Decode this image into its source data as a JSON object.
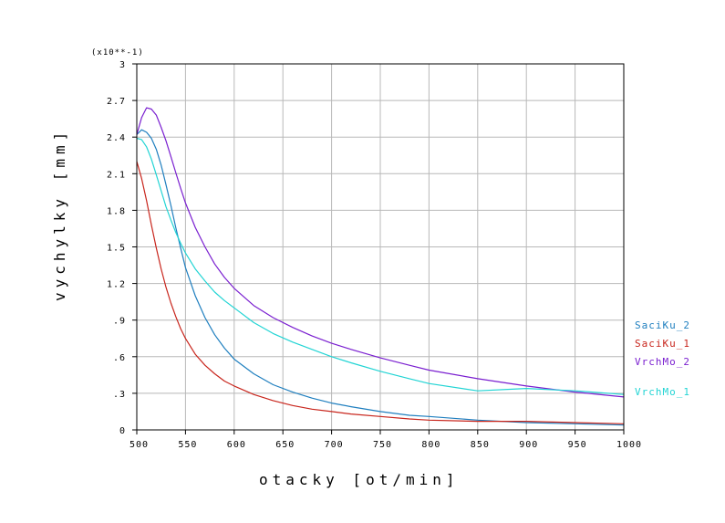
{
  "chart_data": {
    "type": "line",
    "title": "",
    "xlabel": "otacky [ot/min]",
    "ylabel": "vychylky [mm]",
    "y_multiplier_label": "(x10**-1)",
    "xlim": [
      500,
      1000
    ],
    "ylim": [
      0,
      3
    ],
    "x_ticks": [
      "500",
      "550",
      "600",
      "650",
      "700",
      "750",
      "800",
      "850",
      "900",
      "950",
      "1000"
    ],
    "x_tick_values": [
      500,
      550,
      600,
      650,
      700,
      750,
      800,
      850,
      900,
      950,
      1000
    ],
    "y_ticks": [
      "0",
      ".3",
      ".6",
      ".9",
      "1.2",
      "1.5",
      "1.8",
      "2.1",
      "2.4",
      "2.7",
      "3"
    ],
    "y_tick_values": [
      0,
      0.3,
      0.6,
      0.9,
      1.2,
      1.5,
      1.8,
      2.1,
      2.4,
      2.7,
      3.0
    ],
    "grid": true,
    "legend_placement": "right",
    "series": [
      {
        "name": "SaciKu_2",
        "color": "#1f7fbf",
        "x": [
          500,
          505,
          510,
          515,
          520,
          525,
          530,
          535,
          540,
          545,
          550,
          560,
          570,
          580,
          590,
          600,
          620,
          640,
          660,
          680,
          700,
          720,
          750,
          780,
          800,
          850,
          900,
          950,
          1000
        ],
        "y": [
          2.42,
          2.46,
          2.44,
          2.39,
          2.3,
          2.17,
          2.01,
          1.84,
          1.66,
          1.49,
          1.33,
          1.1,
          0.92,
          0.78,
          0.67,
          0.58,
          0.46,
          0.37,
          0.31,
          0.26,
          0.22,
          0.19,
          0.15,
          0.12,
          0.11,
          0.08,
          0.06,
          0.05,
          0.04
        ]
      },
      {
        "name": "SaciKu_1",
        "color": "#c8251c",
        "x": [
          500,
          505,
          510,
          515,
          520,
          525,
          530,
          535,
          540,
          545,
          550,
          560,
          570,
          580,
          590,
          600,
          620,
          640,
          660,
          680,
          700,
          720,
          750,
          780,
          800,
          850,
          900,
          950,
          1000
        ],
        "y": [
          2.2,
          2.06,
          1.88,
          1.68,
          1.49,
          1.32,
          1.17,
          1.04,
          0.93,
          0.83,
          0.75,
          0.62,
          0.53,
          0.46,
          0.4,
          0.36,
          0.29,
          0.24,
          0.2,
          0.17,
          0.15,
          0.13,
          0.11,
          0.09,
          0.08,
          0.07,
          0.07,
          0.06,
          0.05
        ]
      },
      {
        "name": "VrchMo_2",
        "color": "#7a1fd0",
        "x": [
          500,
          505,
          510,
          515,
          520,
          525,
          530,
          535,
          540,
          545,
          550,
          560,
          570,
          580,
          590,
          600,
          620,
          640,
          660,
          680,
          700,
          720,
          750,
          780,
          800,
          850,
          900,
          950,
          1000
        ],
        "y": [
          2.42,
          2.56,
          2.64,
          2.63,
          2.58,
          2.48,
          2.37,
          2.24,
          2.11,
          1.98,
          1.86,
          1.66,
          1.5,
          1.36,
          1.25,
          1.16,
          1.02,
          0.92,
          0.84,
          0.77,
          0.71,
          0.66,
          0.59,
          0.53,
          0.49,
          0.42,
          0.36,
          0.31,
          0.27
        ]
      },
      {
        "name": "VrchMo_1",
        "color": "#22d4d4",
        "x": [
          500,
          505,
          510,
          515,
          520,
          525,
          530,
          535,
          540,
          545,
          550,
          560,
          570,
          580,
          590,
          600,
          620,
          640,
          660,
          680,
          700,
          720,
          750,
          780,
          800,
          850,
          900,
          950,
          1000
        ],
        "y": [
          2.39,
          2.38,
          2.32,
          2.22,
          2.09,
          1.96,
          1.83,
          1.72,
          1.62,
          1.53,
          1.45,
          1.32,
          1.22,
          1.13,
          1.06,
          1.0,
          0.88,
          0.79,
          0.72,
          0.66,
          0.6,
          0.55,
          0.48,
          0.42,
          0.38,
          0.32,
          0.34,
          0.32,
          0.29
        ]
      }
    ]
  }
}
